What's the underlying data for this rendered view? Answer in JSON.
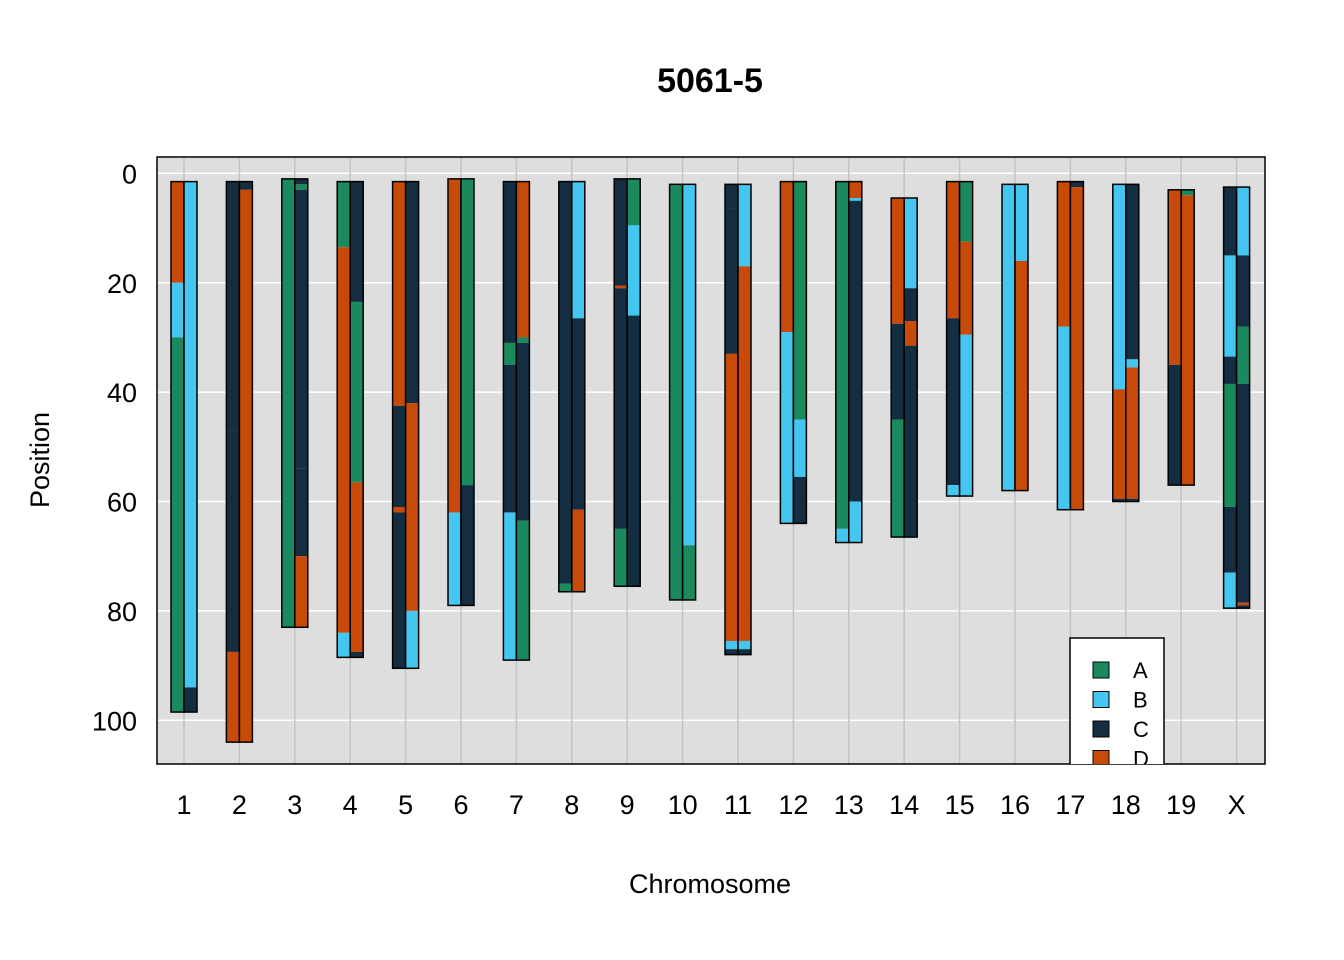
{
  "chart_data": {
    "type": "bar",
    "subtype": "chromosome-haplotype-segments",
    "title": "5061-5",
    "xlabel": "Chromosome",
    "ylabel": "Position",
    "ylim": [
      108,
      -3
    ],
    "yticks": [
      0,
      20,
      40,
      60,
      80,
      100
    ],
    "categories": [
      "1",
      "2",
      "3",
      "4",
      "5",
      "6",
      "7",
      "8",
      "9",
      "10",
      "11",
      "12",
      "13",
      "14",
      "15",
      "16",
      "17",
      "18",
      "19",
      "X"
    ],
    "legend": {
      "position": "bottom-right",
      "entries": [
        {
          "key": "A",
          "label": "A",
          "color": "#1a8a5e"
        },
        {
          "key": "B",
          "label": "B",
          "color": "#45c6f0"
        },
        {
          "key": "C",
          "label": "C",
          "color": "#142d40"
        },
        {
          "key": "D",
          "label": "D",
          "color": "#c84a08"
        }
      ]
    },
    "chromosomes": [
      {
        "name": "1",
        "start": 1.5,
        "end": 98.5,
        "left": [
          [
            1.5,
            20,
            "D"
          ],
          [
            20,
            30,
            "B"
          ],
          [
            30,
            98.5,
            "A"
          ]
        ],
        "right": [
          [
            1.5,
            94,
            "B"
          ],
          [
            94,
            98.5,
            "C"
          ]
        ]
      },
      {
        "name": "2",
        "start": 1.5,
        "end": 104,
        "left": [
          [
            1.5,
            47,
            "C"
          ],
          [
            47,
            87.5,
            "C"
          ],
          [
            87.5,
            104,
            "D"
          ]
        ],
        "right": [
          [
            1.5,
            3,
            "C"
          ],
          [
            3,
            104,
            "D"
          ]
        ]
      },
      {
        "name": "3",
        "start": 1,
        "end": 83,
        "left": [
          [
            1,
            83,
            "A"
          ]
        ],
        "right": [
          [
            1,
            2,
            "C"
          ],
          [
            2,
            3,
            "A"
          ],
          [
            3,
            54,
            "C"
          ],
          [
            54,
            70,
            "C"
          ],
          [
            70,
            83,
            "D"
          ]
        ]
      },
      {
        "name": "4",
        "start": 1.5,
        "end": 88.5,
        "left": [
          [
            1.5,
            13.5,
            "A"
          ],
          [
            13.5,
            84,
            "D"
          ],
          [
            84,
            88.5,
            "B"
          ]
        ],
        "right": [
          [
            1.5,
            23.5,
            "C"
          ],
          [
            23.5,
            56.5,
            "A"
          ],
          [
            56.5,
            87.5,
            "D"
          ],
          [
            87.5,
            88.5,
            "C"
          ]
        ]
      },
      {
        "name": "5",
        "start": 1.5,
        "end": 90.5,
        "left": [
          [
            1.5,
            42.5,
            "D"
          ],
          [
            42.5,
            61,
            "C"
          ],
          [
            61,
            62,
            "D"
          ],
          [
            62,
            90.5,
            "C"
          ]
        ],
        "right": [
          [
            1.5,
            42,
            "C"
          ],
          [
            42,
            80,
            "D"
          ],
          [
            80,
            90.5,
            "B"
          ]
        ]
      },
      {
        "name": "6",
        "start": 1,
        "end": 79,
        "left": [
          [
            1,
            62,
            "D"
          ],
          [
            62,
            79,
            "B"
          ]
        ],
        "right": [
          [
            1,
            57,
            "A"
          ],
          [
            57,
            79,
            "C"
          ]
        ]
      },
      {
        "name": "7",
        "start": 1.5,
        "end": 89,
        "left": [
          [
            1.5,
            31,
            "C"
          ],
          [
            31,
            35,
            "A"
          ],
          [
            35,
            62,
            "C"
          ],
          [
            62,
            89,
            "B"
          ]
        ],
        "right": [
          [
            1.5,
            30,
            "D"
          ],
          [
            30,
            31,
            "A"
          ],
          [
            31,
            63.5,
            "C"
          ],
          [
            63.5,
            89,
            "A"
          ]
        ]
      },
      {
        "name": "8",
        "start": 1.5,
        "end": 76.5,
        "left": [
          [
            1.5,
            75,
            "C"
          ],
          [
            75,
            76.5,
            "A"
          ]
        ],
        "right": [
          [
            1.5,
            26.5,
            "B"
          ],
          [
            26.5,
            61.5,
            "C"
          ],
          [
            61.5,
            76.5,
            "D"
          ]
        ]
      },
      {
        "name": "9",
        "start": 1,
        "end": 75.5,
        "left": [
          [
            1,
            20.5,
            "C"
          ],
          [
            20.5,
            21,
            "D"
          ],
          [
            21,
            65,
            "C"
          ],
          [
            65,
            75.5,
            "A"
          ]
        ],
        "right": [
          [
            1,
            9.5,
            "A"
          ],
          [
            9.5,
            26,
            "B"
          ],
          [
            26,
            75.5,
            "C"
          ]
        ]
      },
      {
        "name": "10",
        "start": 2,
        "end": 78,
        "left": [
          [
            2,
            78,
            "A"
          ]
        ],
        "right": [
          [
            2,
            68,
            "B"
          ],
          [
            68,
            78,
            "A"
          ]
        ]
      },
      {
        "name": "11",
        "start": 2,
        "end": 88,
        "left": [
          [
            2,
            6.5,
            "C"
          ],
          [
            6.5,
            33,
            "C"
          ],
          [
            33,
            85.5,
            "D"
          ],
          [
            85.5,
            87,
            "B"
          ],
          [
            87,
            88,
            "C"
          ]
        ],
        "right": [
          [
            2,
            17,
            "B"
          ],
          [
            17,
            85.5,
            "D"
          ],
          [
            85.5,
            87,
            "B"
          ],
          [
            87,
            88,
            "C"
          ]
        ]
      },
      {
        "name": "12",
        "start": 1.5,
        "end": 64,
        "left": [
          [
            1.5,
            29,
            "D"
          ],
          [
            29,
            64,
            "B"
          ]
        ],
        "right": [
          [
            1.5,
            45,
            "A"
          ],
          [
            45,
            55.5,
            "B"
          ],
          [
            55.5,
            64,
            "C"
          ]
        ]
      },
      {
        "name": "13",
        "start": 1.5,
        "end": 67.5,
        "left": [
          [
            1.5,
            65,
            "A"
          ],
          [
            65,
            67.5,
            "B"
          ]
        ],
        "right": [
          [
            1.5,
            4.5,
            "D"
          ],
          [
            4.5,
            5,
            "B"
          ],
          [
            5,
            60,
            "C"
          ],
          [
            60,
            64.5,
            "B"
          ],
          [
            64.5,
            67.5,
            "B"
          ]
        ]
      },
      {
        "name": "14",
        "start": 4.5,
        "end": 66.5,
        "left": [
          [
            4.5,
            27.5,
            "D"
          ],
          [
            27.5,
            45,
            "C"
          ],
          [
            45,
            66.5,
            "A"
          ]
        ],
        "right": [
          [
            4.5,
            21,
            "B"
          ],
          [
            21,
            27,
            "C"
          ],
          [
            27,
            31.5,
            "D"
          ],
          [
            31.5,
            66.5,
            "C"
          ]
        ]
      },
      {
        "name": "15",
        "start": 1.5,
        "end": 59,
        "left": [
          [
            1.5,
            26.5,
            "D"
          ],
          [
            26.5,
            57,
            "C"
          ],
          [
            57,
            58,
            "B"
          ],
          [
            58,
            59,
            "B"
          ]
        ],
        "right": [
          [
            1.5,
            12.5,
            "A"
          ],
          [
            12.5,
            29.5,
            "D"
          ],
          [
            29.5,
            59,
            "B"
          ]
        ]
      },
      {
        "name": "16",
        "start": 2,
        "end": 58,
        "left": [
          [
            2,
            58,
            "B"
          ]
        ],
        "right": [
          [
            2,
            16,
            "B"
          ],
          [
            16,
            58,
            "D"
          ]
        ]
      },
      {
        "name": "17",
        "start": 1.5,
        "end": 61.5,
        "left": [
          [
            1.5,
            28,
            "D"
          ],
          [
            28,
            61.5,
            "B"
          ]
        ],
        "right": [
          [
            1.5,
            2.5,
            "C"
          ],
          [
            2.5,
            61.5,
            "D"
          ]
        ]
      },
      {
        "name": "18",
        "start": 2,
        "end": 60,
        "left": [
          [
            2,
            39.5,
            "B"
          ],
          [
            39.5,
            59.5,
            "D"
          ],
          [
            59.5,
            60,
            "C"
          ]
        ],
        "right": [
          [
            2,
            34,
            "C"
          ],
          [
            34,
            35.5,
            "B"
          ],
          [
            35.5,
            59.5,
            "D"
          ],
          [
            59.5,
            60,
            "C"
          ]
        ]
      },
      {
        "name": "19",
        "start": 3,
        "end": 57,
        "left": [
          [
            3,
            35,
            "D"
          ],
          [
            35,
            57,
            "C"
          ]
        ],
        "right": [
          [
            3,
            4,
            "A"
          ],
          [
            4,
            57,
            "D"
          ]
        ]
      },
      {
        "name": "X",
        "start": 2.5,
        "end": 79.5,
        "left": [
          [
            2.5,
            15,
            "C"
          ],
          [
            15,
            33.5,
            "B"
          ],
          [
            33.5,
            38.5,
            "C"
          ],
          [
            38.5,
            61,
            "A"
          ],
          [
            61,
            73,
            "C"
          ],
          [
            73,
            79.5,
            "B"
          ]
        ],
        "right": [
          [
            2.5,
            15,
            "B"
          ],
          [
            15,
            28,
            "C"
          ],
          [
            28,
            38.5,
            "A"
          ],
          [
            38.5,
            78.5,
            "C"
          ],
          [
            78.5,
            79,
            "D"
          ],
          [
            79,
            79.5,
            "C"
          ]
        ]
      }
    ]
  }
}
